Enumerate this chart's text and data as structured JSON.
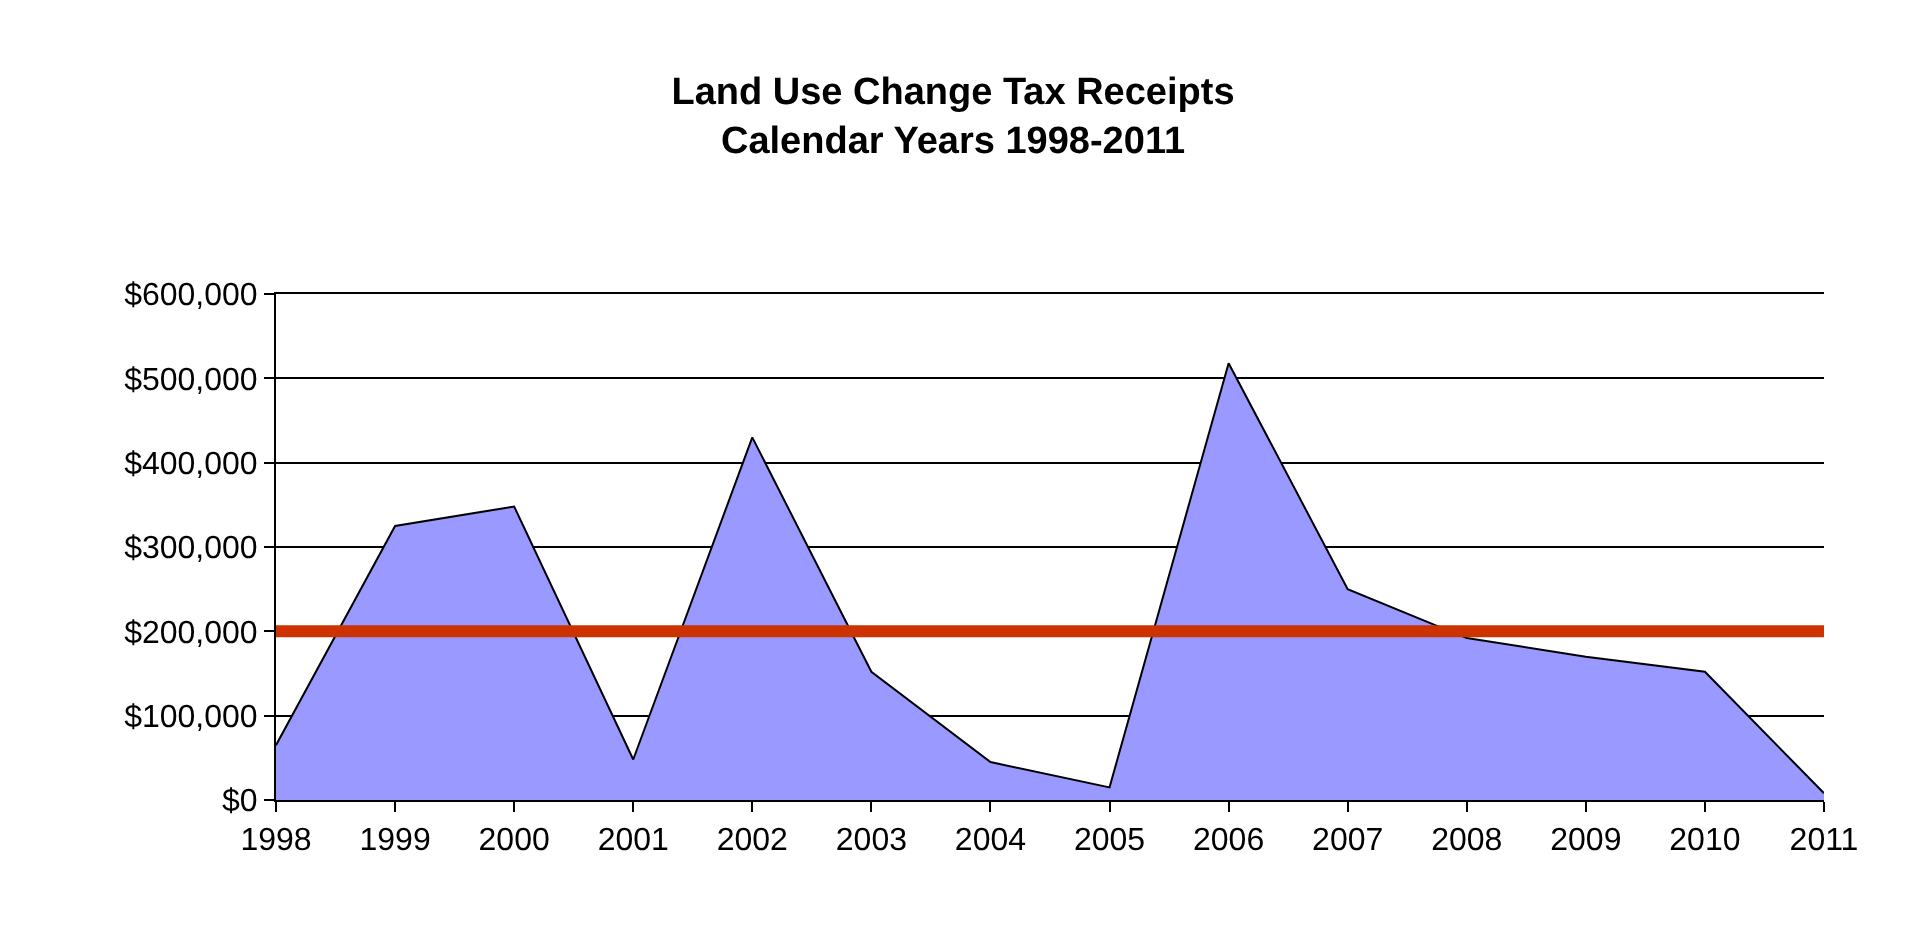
{
  "chart_data": {
    "type": "area",
    "title": "Land Use Change Tax Receipts\nCalendar Years 1998-2011",
    "x": [
      1998,
      1999,
      2000,
      2001,
      2002,
      2003,
      2004,
      2005,
      2006,
      2007,
      2008,
      2009,
      2010,
      2011
    ],
    "series": [
      {
        "color": "#9999ff",
        "values": [
          65000,
          325000,
          348000,
          48000,
          430000,
          152000,
          45000,
          15000,
          518000,
          250000,
          192000,
          170000,
          152000,
          8000
        ]
      }
    ],
    "xlim": [
      1998,
      2011
    ],
    "xticks": [
      1998,
      1999,
      2000,
      2001,
      2002,
      2003,
      2004,
      2005,
      2006,
      2007,
      2008,
      2009,
      2010,
      2011
    ],
    "ylim": [
      0,
      600000
    ],
    "yticks": [
      {
        "value": 0,
        "label": "$0"
      },
      {
        "value": 100000,
        "label": "$100,000"
      },
      {
        "value": 200000,
        "label": "$200,000"
      },
      {
        "value": 300000,
        "label": "$300,000"
      },
      {
        "value": 400000,
        "label": "$400,000"
      },
      {
        "value": 500000,
        "label": "$500,000"
      },
      {
        "value": 600000,
        "label": "$600,000"
      }
    ],
    "ref_lines": [
      {
        "axis": "y",
        "value": 200000,
        "color": "#cc3300"
      }
    ],
    "grid": "y"
  }
}
